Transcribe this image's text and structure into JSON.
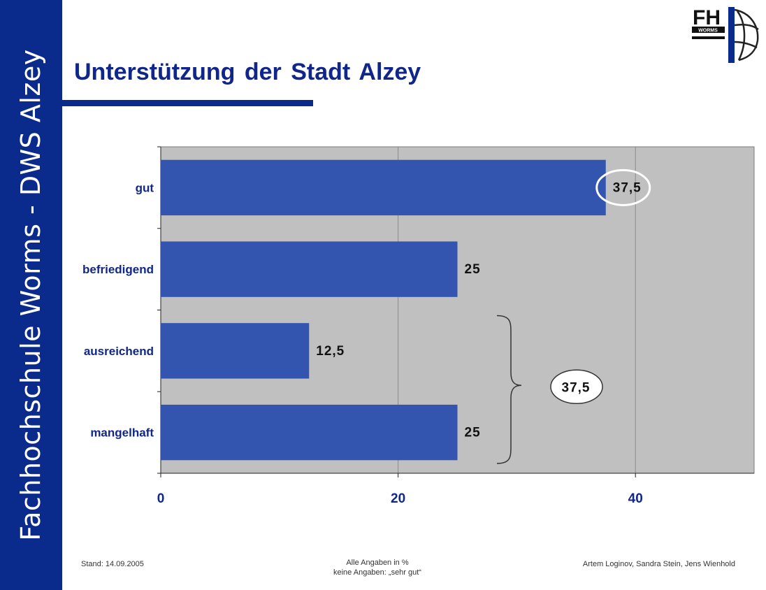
{
  "sidebar": {
    "text": "Fachhochschule Worms - DWS Alzey"
  },
  "title": "Unterstützung der Stadt Alzey",
  "logo": {
    "text": "FH",
    "subtext": "WORMS"
  },
  "footer": {
    "left": "Stand: 14.09.2005",
    "center_line1": "Alle Angaben in %",
    "center_line2": "keine Angaben: „sehr gut“",
    "right": "Artem Loginov, Sandra Stein, Jens Wienhold"
  },
  "colors": {
    "brand": "#0a2a8c",
    "bar": "#3355b0",
    "plot_background": "#c0c0c0"
  },
  "chart_data": {
    "type": "bar",
    "orientation": "horizontal",
    "categories": [
      "gut",
      "befriedigend",
      "ausreichend",
      "mangelhaft"
    ],
    "values": [
      37.5,
      25,
      12.5,
      25
    ],
    "value_labels": [
      "37,5",
      "25",
      "12,5",
      "25"
    ],
    "xlim": [
      0,
      50
    ],
    "xticks": [
      0,
      20,
      40
    ],
    "grid": "vertical",
    "annotations": [
      {
        "text": "37,5",
        "type": "circle",
        "target": "gut"
      },
      {
        "text": "37,5",
        "type": "brace-circle",
        "targets": [
          "ausreichend",
          "mangelhaft"
        ]
      }
    ]
  }
}
